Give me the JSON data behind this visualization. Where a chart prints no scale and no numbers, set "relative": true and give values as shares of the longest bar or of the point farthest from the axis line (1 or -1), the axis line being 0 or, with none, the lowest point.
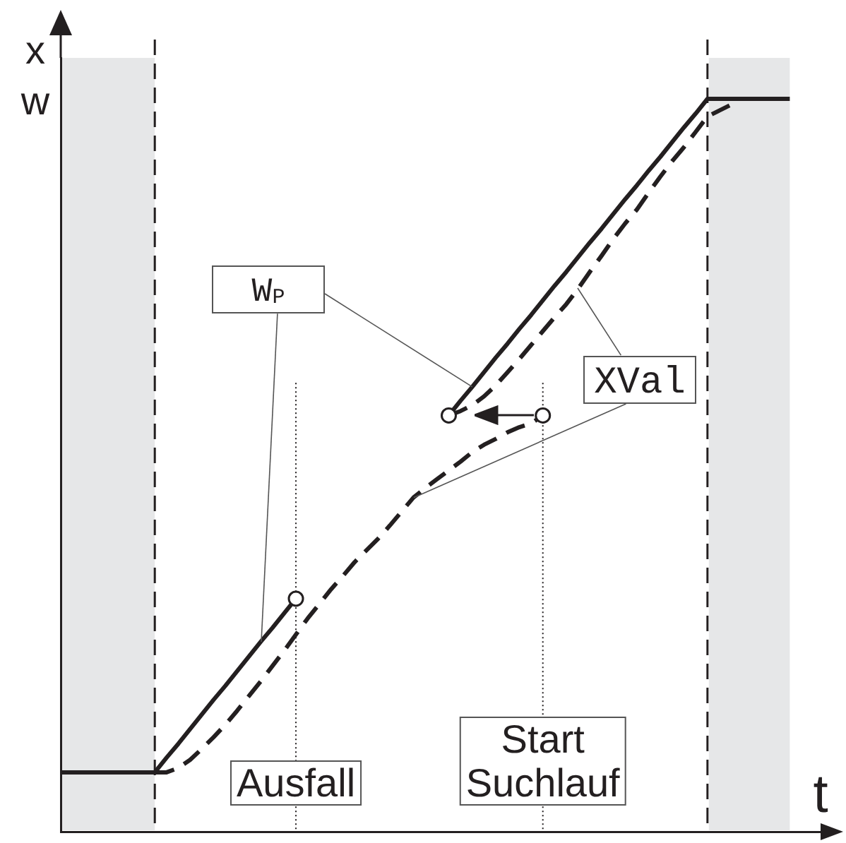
{
  "chart_data": {
    "type": "line",
    "relative": true,
    "xlabel": "t",
    "ylabel": "x w",
    "categories": [
      null,
      null,
      null,
      null,
      null,
      null,
      null,
      null,
      null,
      null,
      null,
      null,
      null,
      null,
      null,
      null,
      null,
      null,
      null,
      null,
      "Ausfall",
      null,
      null,
      null,
      null,
      null,
      null,
      null,
      null,
      null,
      null,
      null,
      null,
      null,
      null,
      null,
      null,
      null,
      null,
      null,
      null,
      "Start Suchlauf",
      null,
      null,
      null,
      null,
      null,
      null,
      null,
      null,
      null,
      null,
      null,
      null,
      null,
      null,
      null,
      null,
      null,
      null,
      null,
      null,
      null,
      null,
      null,
      null,
      null
    ],
    "series": [
      {
        "name": "W$_{P}$",
        "color": "#231f20",
        "line_style": "solid",
        "values": [
          0.081,
          0.081,
          0.081,
          0.081,
          0.081,
          0.081,
          0.081,
          0.081,
          0.081,
          0.101,
          0.12,
          0.14,
          0.16,
          0.18,
          0.199,
          0.219,
          0.239,
          0.259,
          0.278,
          0.298,
          0.318,
          null,
          null,
          null,
          null,
          null,
          null,
          null,
          null,
          null,
          null,
          null,
          null,
          0.568,
          0.588,
          0.607,
          0.627,
          0.647,
          0.666,
          0.686,
          0.705,
          0.725,
          0.745,
          0.764,
          0.784,
          0.804,
          0.823,
          0.843,
          0.863,
          0.882,
          0.902,
          0.921,
          0.941,
          0.961,
          0.98,
          1,
          1,
          1,
          1,
          1,
          1,
          1,
          1,
          null,
          null,
          null,
          null
        ]
      },
      {
        "name": "XVal",
        "color": "#231f20",
        "line_style": "dashed",
        "values": [
          null,
          null,
          null,
          null,
          null,
          null,
          null,
          null,
          0.081,
          0.081,
          0.087,
          0.098,
          0.113,
          0.129,
          0.146,
          0.165,
          0.185,
          0.205,
          0.226,
          0.247,
          0.269,
          0.291,
          0.311,
          0.331,
          0.349,
          0.368,
          0.384,
          0.4,
          0.418,
          0.437,
          0.456,
          0.469,
          0.481,
          0.493,
          0.505,
          0.518,
          0.528,
          0.536,
          0.545,
          0.552,
          0.557,
          0.568,
          null,
          null,
          null,
          null,
          null,
          null,
          null,
          null,
          null,
          null,
          null,
          null,
          null,
          null,
          null,
          null,
          null,
          null,
          null,
          null,
          null,
          null,
          null,
          null,
          null
        ]
      },
      {
        "color": "#231f20",
        "line_style": "dashed",
        "values": [
          null,
          null,
          null,
          null,
          null,
          null,
          null,
          null,
          null,
          null,
          null,
          null,
          null,
          null,
          null,
          null,
          null,
          null,
          null,
          null,
          null,
          null,
          null,
          null,
          null,
          null,
          null,
          null,
          null,
          null,
          null,
          null,
          null,
          0.568,
          0.574,
          0.582,
          0.594,
          0.609,
          0.627,
          0.645,
          0.664,
          0.683,
          0.702,
          0.72,
          0.741,
          0.764,
          0.786,
          0.809,
          0.83,
          0.849,
          0.872,
          0.894,
          0.915,
          0.934,
          0.955,
          0.976,
          0.984,
          0.992,
          null,
          null,
          null,
          null,
          null,
          null,
          null,
          null,
          null
        ]
      },
      {
        "type": "scatter",
        "color": "#231f20",
        "marker": "circle",
        "values": [
          null,
          null,
          null,
          null,
          null,
          null,
          null,
          null,
          null,
          null,
          null,
          null,
          null,
          null,
          null,
          null,
          null,
          null,
          null,
          null,
          0.318,
          null,
          null,
          null,
          null,
          null,
          null,
          null,
          null,
          null,
          null,
          null,
          null,
          0.568,
          null,
          null,
          null,
          null,
          null,
          null,
          null,
          0.568,
          null,
          null,
          null,
          null,
          null,
          null,
          null,
          null,
          null,
          null,
          null,
          null,
          null,
          null,
          null,
          null,
          null,
          null,
          null,
          null,
          null,
          null,
          null,
          null,
          null
        ]
      }
    ],
    "ref_lines": [
      {
        "axis": "x",
        "value": "Ausfall",
        "line_style": "dotted",
        "color": "#231f20"
      },
      {
        "axis": "x",
        "value": "Start Suchlauf",
        "line_style": "dotted",
        "color": "#231f20"
      }
    ]
  }
}
